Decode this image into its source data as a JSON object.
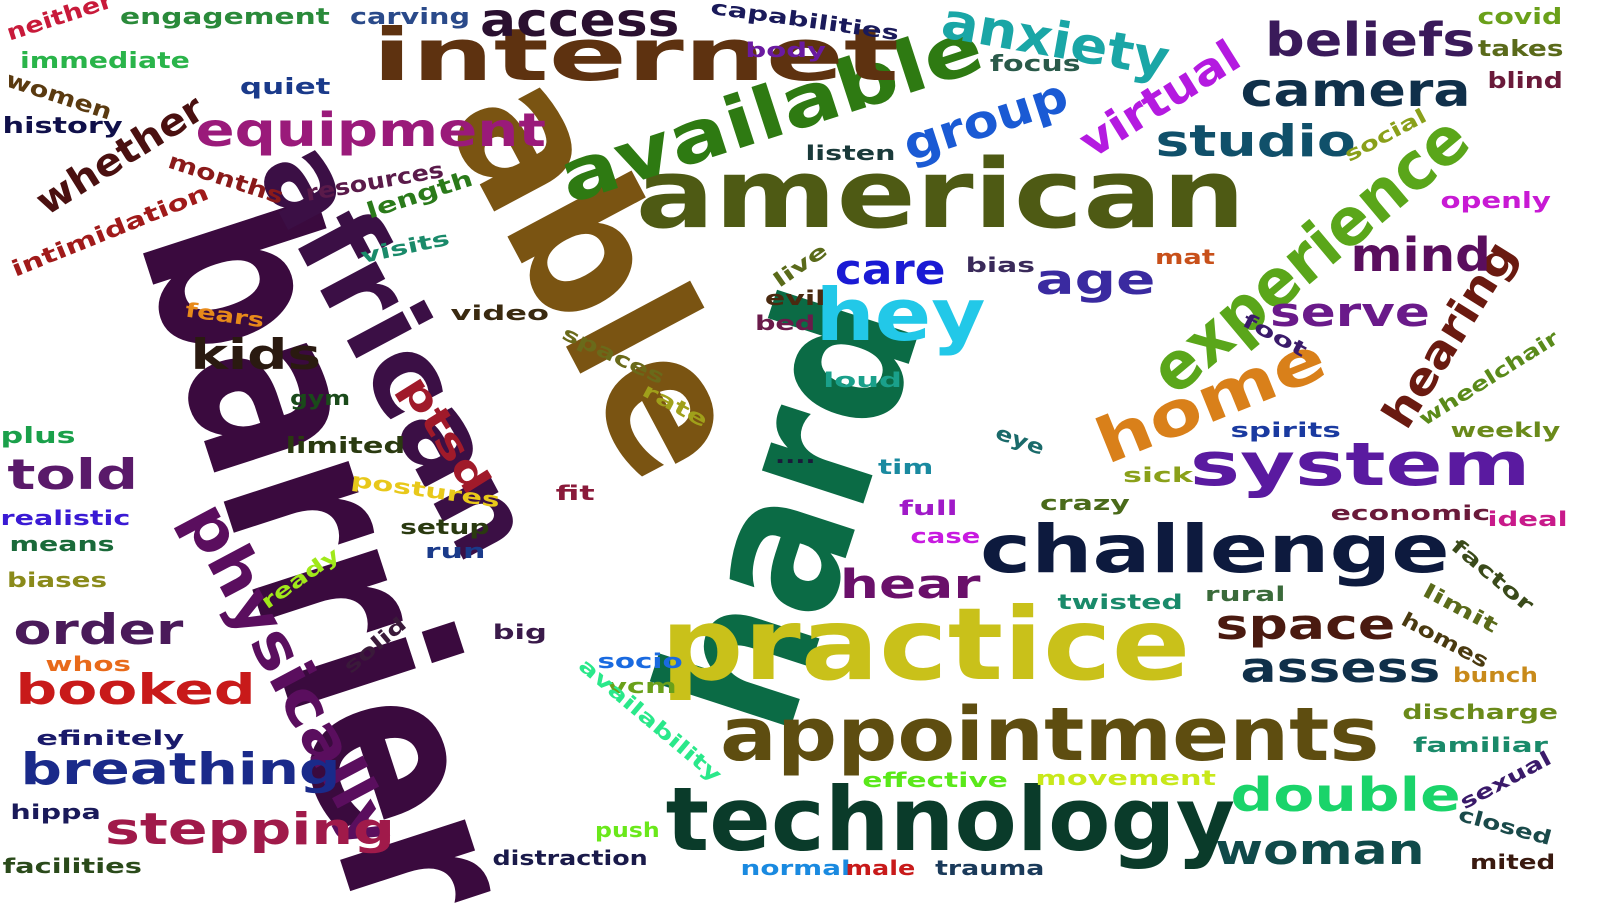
{
  "words": [
    {
      "text": "barrier",
      "color": "#3a0a3e"
    },
    {
      "text": "hard",
      "color": "#0b6b45"
    },
    {
      "text": "able",
      "color": "#7a5412"
    },
    {
      "text": "african",
      "color": "#3b0f45"
    },
    {
      "text": "american",
      "color": "#4e5a14"
    },
    {
      "text": "practice",
      "color": "#c9c11a"
    },
    {
      "text": "technology",
      "color": "#0a3b2a"
    },
    {
      "text": "appointments",
      "color": "#5e4d10"
    },
    {
      "text": "physically",
      "color": "#5a0e5e"
    },
    {
      "text": "available",
      "color": "#2e7a12"
    },
    {
      "text": "internet",
      "color": "#5e3210"
    },
    {
      "text": "experience",
      "color": "#5aa61a"
    },
    {
      "text": "challenge",
      "color": "#0d1a3e"
    },
    {
      "text": "system",
      "color": "#5a1aa0"
    },
    {
      "text": "hey",
      "color": "#22c8e8"
    },
    {
      "text": "home",
      "color": "#d9801a"
    },
    {
      "text": "equipment",
      "color": "#9a1a7a"
    },
    {
      "text": "hearing",
      "color": "#6a1a10"
    },
    {
      "text": "anxiety",
      "color": "#1aa6a6"
    },
    {
      "text": "group",
      "color": "#1a5ad4"
    },
    {
      "text": "beliefs",
      "color": "#3a1a5a"
    },
    {
      "text": "camera",
      "color": "#10304a"
    },
    {
      "text": "studio",
      "color": "#10506a"
    },
    {
      "text": "virtual",
      "color": "#b41ae0"
    },
    {
      "text": "whether",
      "color": "#4a1010"
    },
    {
      "text": "access",
      "color": "#2a1030"
    },
    {
      "text": "mind",
      "color": "#5a0e5e"
    },
    {
      "text": "age",
      "color": "#3a2aa0"
    },
    {
      "text": "care",
      "color": "#1a1ad4"
    },
    {
      "text": "serve",
      "color": "#6a1a8a"
    },
    {
      "text": "breathing",
      "color": "#1a2a8a"
    },
    {
      "text": "stepping",
      "color": "#a01a4a"
    },
    {
      "text": "booked",
      "color": "#c81a1a"
    },
    {
      "text": "double",
      "color": "#1ad46a"
    },
    {
      "text": "woman",
      "color": "#104a4a"
    },
    {
      "text": "assess",
      "color": "#10304a"
    },
    {
      "text": "space",
      "color": "#4a1a10"
    },
    {
      "text": "hear",
      "color": "#6a106a"
    },
    {
      "text": "order",
      "color": "#4a1a5a"
    },
    {
      "text": "told",
      "color": "#5a1a6a"
    },
    {
      "text": "kids",
      "color": "#2a1a10"
    },
    {
      "text": "ptsd",
      "color": "#a01a2a"
    },
    {
      "text": "neither",
      "color": "#c81a3a"
    },
    {
      "text": "engagement",
      "color": "#2a8a3a"
    },
    {
      "text": "carving",
      "color": "#2a4a8a"
    },
    {
      "text": "capabilities",
      "color": "#1a1a5a"
    },
    {
      "text": "immediate",
      "color": "#2ab44a"
    },
    {
      "text": "quiet",
      "color": "#1a3a8a"
    },
    {
      "text": "body",
      "color": "#6a1aa0"
    },
    {
      "text": "focus",
      "color": "#2a5a4a"
    },
    {
      "text": "covid",
      "color": "#6aa01a"
    },
    {
      "text": "takes",
      "color": "#5a6a1a"
    },
    {
      "text": "blind",
      "color": "#6a1a3a"
    },
    {
      "text": "women",
      "color": "#5a3a10"
    },
    {
      "text": "history",
      "color": "#10104a"
    },
    {
      "text": "listen",
      "color": "#1a3a3a"
    },
    {
      "text": "social",
      "color": "#8aa01a"
    },
    {
      "text": "openly",
      "color": "#c81ad4"
    },
    {
      "text": "months",
      "color": "#8a1a1a"
    },
    {
      "text": "resources",
      "color": "#5a1a4a"
    },
    {
      "text": "length",
      "color": "#2a7a1a"
    },
    {
      "text": "intimidation",
      "color": "#a01a1a"
    },
    {
      "text": "visits",
      "color": "#1a8a6a"
    },
    {
      "text": "live",
      "color": "#5a6a1a"
    },
    {
      "text": "bias",
      "color": "#3a2a5a"
    },
    {
      "text": "mat",
      "color": "#c8501a"
    },
    {
      "text": "fears",
      "color": "#e88a1a"
    },
    {
      "text": "evil",
      "color": "#4a2a10"
    },
    {
      "text": "bed",
      "color": "#6a1a4a"
    },
    {
      "text": "video",
      "color": "#3a2a10"
    },
    {
      "text": "foot",
      "color": "#3a1a6a"
    },
    {
      "text": "spaces",
      "color": "#6a6a1a"
    },
    {
      "text": "loud",
      "color": "#1aa08a"
    },
    {
      "text": "wheelchair",
      "color": "#5a8a1a"
    },
    {
      "text": "gym",
      "color": "#1a4a1a"
    },
    {
      "text": "rate",
      "color": "#a0a01a"
    },
    {
      "text": "plus",
      "color": "#1aa04a"
    },
    {
      "text": "limited",
      "color": "#2a3a10"
    },
    {
      "text": "eye",
      "color": "#1a6a6a"
    },
    {
      "text": "spirits",
      "color": "#1a3aa0"
    },
    {
      "text": "weekly",
      "color": "#6a8a1a"
    },
    {
      "text": "....",
      "color": "#1a1a3a"
    },
    {
      "text": "tim",
      "color": "#1a8aa0"
    },
    {
      "text": "sick",
      "color": "#8aa01a"
    },
    {
      "text": "postures",
      "color": "#e8c81a"
    },
    {
      "text": "fit",
      "color": "#8a1a3a"
    },
    {
      "text": "crazy",
      "color": "#4a6a1a"
    },
    {
      "text": "economic",
      "color": "#6a1a3a"
    },
    {
      "text": "ideal",
      "color": "#c81a8a"
    },
    {
      "text": "realistic",
      "color": "#3a1ad4"
    },
    {
      "text": "full",
      "color": "#a01ac8"
    },
    {
      "text": "case",
      "color": "#c81ae0"
    },
    {
      "text": "setup",
      "color": "#2a3a10"
    },
    {
      "text": "means",
      "color": "#1a6a3a"
    },
    {
      "text": "run",
      "color": "#1a3a8a"
    },
    {
      "text": "factor",
      "color": "#3a4a1a"
    },
    {
      "text": "biases",
      "color": "#8a8a1a"
    },
    {
      "text": "ready",
      "color": "#a0e81a"
    },
    {
      "text": "twisted",
      "color": "#1a8a6a"
    },
    {
      "text": "rural",
      "color": "#3a6a3a"
    },
    {
      "text": "limit",
      "color": "#5a6a1a"
    },
    {
      "text": "homes",
      "color": "#4a3a10"
    },
    {
      "text": "solid",
      "color": "#3a1a3a"
    },
    {
      "text": "big",
      "color": "#3a1a4a"
    },
    {
      "text": "whos",
      "color": "#e86a1a"
    },
    {
      "text": "socio",
      "color": "#1a6ae0"
    },
    {
      "text": "bunch",
      "color": "#c88a1a"
    },
    {
      "text": "vcm",
      "color": "#6aa01a"
    },
    {
      "text": "availability",
      "color": "#2ae88a"
    },
    {
      "text": "discharge",
      "color": "#6a8a1a"
    },
    {
      "text": "efinitely",
      "color": "#1a1a6a"
    },
    {
      "text": "familiar",
      "color": "#1a8a6a"
    },
    {
      "text": "effective",
      "color": "#5ae81a"
    },
    {
      "text": "movement",
      "color": "#c8e81a"
    },
    {
      "text": "sexual",
      "color": "#3a1a6a"
    },
    {
      "text": "hippa",
      "color": "#1a1a5a"
    },
    {
      "text": "push",
      "color": "#6ae81a"
    },
    {
      "text": "closed",
      "color": "#1a4a4a"
    },
    {
      "text": "facilities",
      "color": "#2a4a1a"
    },
    {
      "text": "distraction",
      "color": "#1a1a4a"
    },
    {
      "text": "normal",
      "color": "#1a8ae0"
    },
    {
      "text": "male",
      "color": "#c81a1a"
    },
    {
      "text": "trauma",
      "color": "#1a3a5a"
    },
    {
      "text": "mited",
      "color": "#3a1a10"
    }
  ]
}
